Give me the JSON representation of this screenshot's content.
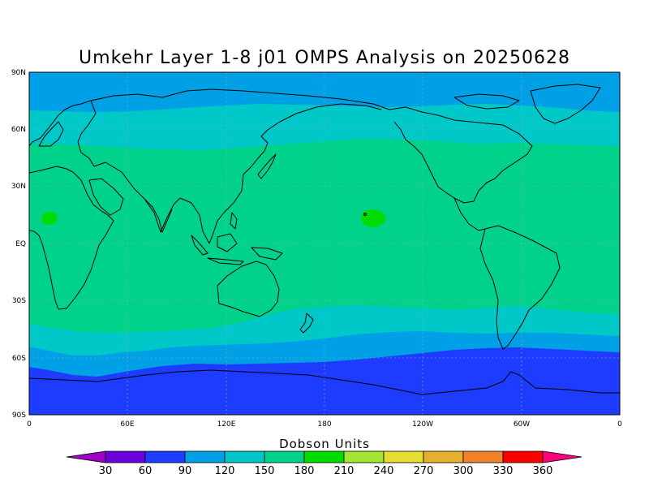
{
  "title": "Umkehr Layer 1-8 j01 OMPS Analysis on 20250628",
  "lat_labels": [
    "90N",
    "60N",
    "30N",
    "EQ",
    "30S",
    "60S",
    "90S"
  ],
  "lon_labels": [
    "0",
    "60E",
    "120E",
    "180",
    "120W",
    "60W",
    "0"
  ],
  "colorbar": {
    "title": "Dobson Units",
    "ticks": [
      "30",
      "60",
      "90",
      "120",
      "150",
      "180",
      "210",
      "240",
      "270",
      "300",
      "330",
      "360"
    ],
    "colors": [
      "#a000c8",
      "#6e00dc",
      "#1e3cff",
      "#00a0e6",
      "#00c8c8",
      "#00d28c",
      "#00dc00",
      "#a0e632",
      "#e6dc32",
      "#e6af2d",
      "#f08228",
      "#fa0000",
      "#ff007f"
    ]
  },
  "colors": {
    "band_below_30": "#a000c8",
    "band_60_90": "#1e3cff",
    "band_90_120": "#00a0e6",
    "band_120_150": "#00c8c8",
    "band_150_180": "#00d28c",
    "band_180_210": "#00dc00"
  }
}
